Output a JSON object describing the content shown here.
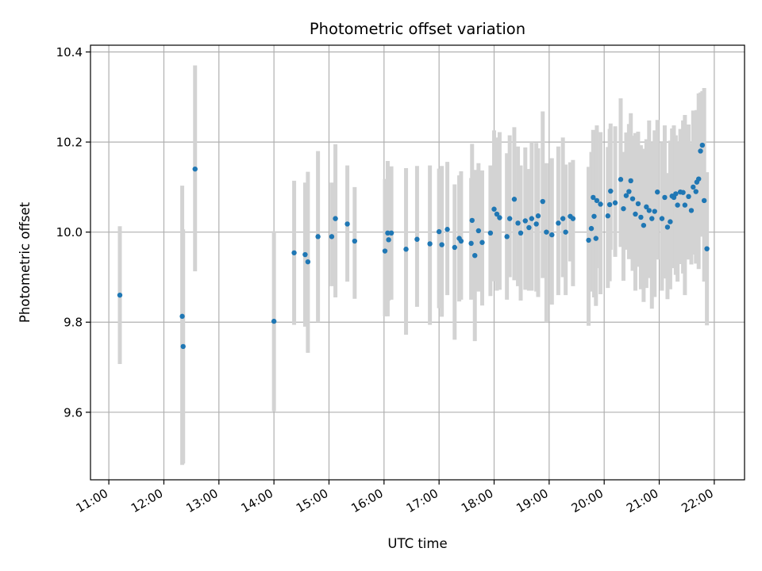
{
  "chart_data": {
    "type": "scatter",
    "title": "Photometric offset variation",
    "xlabel": "UTC time",
    "ylabel": "Photometric offset",
    "xlim": [
      "10:40",
      "22:33"
    ],
    "ylim": [
      9.45,
      10.415
    ],
    "x_ticks": [
      "11:00",
      "12:00",
      "13:00",
      "14:00",
      "15:00",
      "16:00",
      "17:00",
      "18:00",
      "19:00",
      "20:00",
      "21:00",
      "22:00"
    ],
    "y_ticks": [
      9.6,
      9.8,
      10.0,
      10.2,
      10.4
    ],
    "y_tick_labels": [
      "9.6",
      "9.8",
      "10.0",
      "10.2",
      "10.4"
    ],
    "grid": true,
    "colors": {
      "marker": "#1f77b4",
      "errorbar": "#d3d3d3",
      "grid": "#b0b0b0"
    },
    "series": [
      {
        "x": [
          "11:12",
          "12:20",
          "12:21",
          "12:34",
          "14:00",
          "14:22",
          "14:34",
          "14:37",
          "14:48",
          "15:03",
          "15:07",
          "15:20",
          "15:28",
          "16:01",
          "16:04",
          "16:05",
          "16:08",
          "16:24",
          "16:36",
          "16:50",
          "17:00",
          "17:03",
          "17:09",
          "17:17",
          "17:22",
          "17:24",
          "17:35",
          "17:36",
          "17:39",
          "17:43",
          "17:47",
          "17:56",
          "18:00",
          "18:03",
          "18:06",
          "18:14",
          "18:17",
          "18:22",
          "18:26",
          "18:29",
          "18:34",
          "18:38",
          "18:41",
          "18:46",
          "18:48",
          "18:53",
          "18:57",
          "19:03",
          "19:10",
          "19:15",
          "19:18",
          "19:23",
          "19:26",
          "19:43",
          "19:46",
          "19:48",
          "19:49",
          "19:51",
          "19:52",
          "19:56",
          "20:04",
          "20:06",
          "20:07",
          "20:12",
          "20:18",
          "20:21",
          "20:24",
          "20:27",
          "20:29",
          "20:31",
          "20:34",
          "20:37",
          "20:40",
          "20:43",
          "20:46",
          "20:49",
          "20:52",
          "20:55",
          "20:58",
          "21:03",
          "21:06",
          "21:09",
          "21:12",
          "21:14",
          "21:16",
          "21:18",
          "21:20",
          "21:23",
          "21:26",
          "21:28",
          "21:32",
          "21:35",
          "21:37",
          "21:40",
          "21:41",
          "21:43",
          "21:45",
          "21:47",
          "21:49",
          "21:52"
        ],
        "y": [
          9.86,
          9.813,
          9.746,
          10.14,
          9.802,
          9.954,
          9.95,
          9.934,
          9.99,
          9.99,
          10.03,
          10.018,
          9.98,
          9.958,
          9.998,
          9.983,
          9.998,
          9.962,
          9.984,
          9.974,
          10.001,
          9.972,
          10.006,
          9.966,
          9.986,
          9.98,
          9.975,
          10.026,
          9.948,
          10.003,
          9.977,
          9.998,
          10.051,
          10.04,
          10.032,
          9.99,
          10.03,
          10.073,
          10.02,
          9.998,
          10.025,
          10.01,
          10.03,
          10.018,
          10.036,
          10.068,
          10.0,
          9.994,
          10.02,
          10.03,
          10.0,
          10.035,
          10.03,
          9.982,
          10.008,
          10.077,
          10.035,
          9.986,
          10.07,
          10.062,
          10.036,
          10.061,
          10.091,
          10.065,
          10.117,
          10.052,
          10.081,
          10.09,
          10.114,
          10.074,
          10.04,
          10.063,
          10.033,
          10.015,
          10.056,
          10.048,
          10.03,
          10.046,
          10.089,
          10.03,
          10.077,
          10.011,
          10.023,
          10.08,
          10.077,
          10.085,
          10.06,
          10.089,
          10.088,
          10.06,
          10.079,
          10.048,
          10.1,
          10.09,
          10.111,
          10.118,
          10.18,
          10.193,
          10.07,
          9.963
        ],
        "yerr_low": [
          0.153,
          0.33,
          0.26,
          0.227,
          0.2,
          0.16,
          0.16,
          0.202,
          0.19,
          0.11,
          0.175,
          0.128,
          0.128,
          0.145,
          0.185,
          0.135,
          0.148,
          0.19,
          0.15,
          0.18,
          0.17,
          0.16,
          0.146,
          0.205,
          0.14,
          0.13,
          0.125,
          0.15,
          0.19,
          0.135,
          0.14,
          0.14,
          0.16,
          0.17,
          0.16,
          0.14,
          0.13,
          0.18,
          0.14,
          0.15,
          0.153,
          0.14,
          0.16,
          0.15,
          0.18,
          0.17,
          0.2,
          0.155,
          0.16,
          0.13,
          0.14,
          0.1,
          0.15,
          0.19,
          0.14,
          0.16,
          0.18,
          0.15,
          0.15,
          0.2,
          0.16,
          0.17,
          0.13,
          0.12,
          0.15,
          0.16,
          0.12,
          0.15,
          0.15,
          0.16,
          0.17,
          0.14,
          0.16,
          0.17,
          0.18,
          0.15,
          0.2,
          0.19,
          0.15,
          0.16,
          0.18,
          0.16,
          0.15,
          0.16,
          0.14,
          0.18,
          0.17,
          0.16,
          0.18,
          0.2,
          0.14,
          0.12,
          0.15,
          0.16,
          0.13,
          0.2,
          0.19,
          0.14,
          0.18,
          0.17
        ],
        "yerr_high": [
          0.153,
          0.29,
          0.26,
          0.23,
          0.2,
          0.16,
          0.16,
          0.2,
          0.19,
          0.12,
          0.165,
          0.13,
          0.12,
          0.16,
          0.16,
          0.162,
          0.148,
          0.18,
          0.163,
          0.174,
          0.14,
          0.175,
          0.15,
          0.14,
          0.14,
          0.155,
          0.145,
          0.17,
          0.19,
          0.15,
          0.16,
          0.15,
          0.175,
          0.17,
          0.19,
          0.185,
          0.185,
          0.16,
          0.17,
          0.15,
          0.163,
          0.13,
          0.17,
          0.18,
          0.15,
          0.2,
          0.153,
          0.17,
          0.17,
          0.18,
          0.15,
          0.12,
          0.13,
          0.163,
          0.17,
          0.15,
          0.14,
          0.15,
          0.167,
          0.16,
          0.153,
          0.168,
          0.15,
          0.17,
          0.18,
          0.126,
          0.14,
          0.15,
          0.15,
          0.14,
          0.18,
          0.16,
          0.16,
          0.17,
          0.15,
          0.2,
          0.17,
          0.18,
          0.16,
          0.17,
          0.16,
          0.12,
          0.18,
          0.15,
          0.16,
          0.13,
          0.14,
          0.14,
          0.16,
          0.2,
          0.16,
          0.15,
          0.17,
          0.18,
          0.16,
          0.19,
          0.13,
          0.12,
          0.25,
          0.17
        ]
      }
    ]
  }
}
